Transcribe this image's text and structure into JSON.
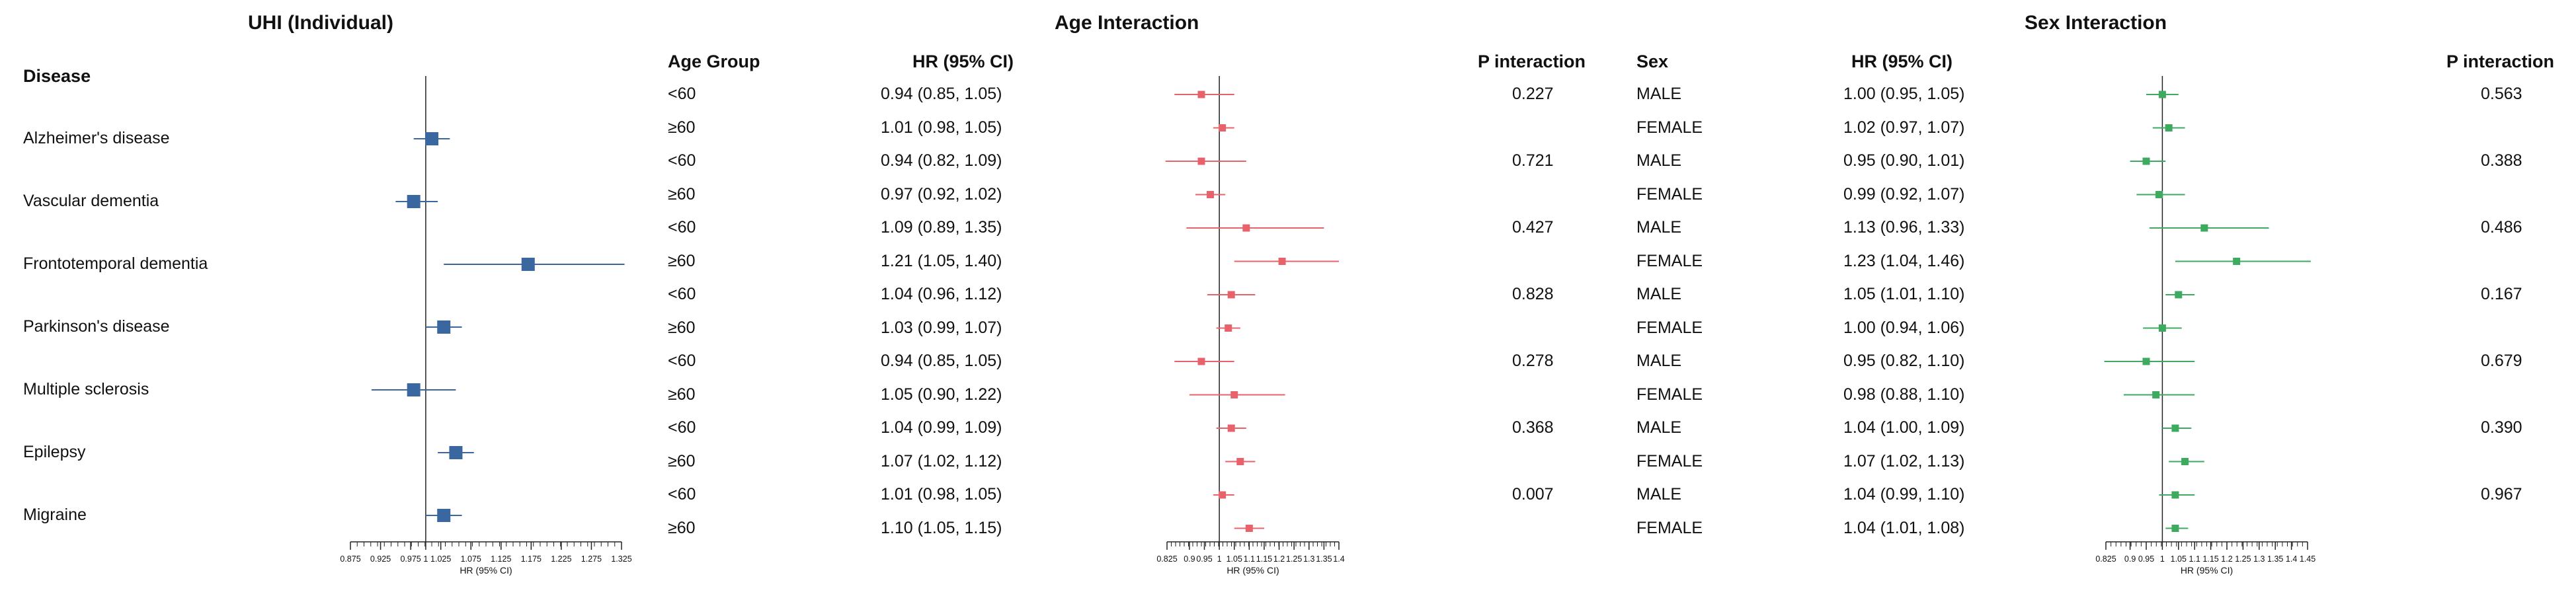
{
  "panels": {
    "uhi_title": "UHI (Individual)",
    "age_title": "Age Interaction",
    "sex_title": "Sex Interaction"
  },
  "headers": {
    "disease": "Disease",
    "age_group": "Age Group",
    "hr_ci": "HR (95% CI)",
    "p_interaction": "P interaction",
    "sex": "Sex"
  },
  "colors": {
    "uhi": "#3a67a0",
    "age": "#e8626b",
    "sex": "#3daa60",
    "axis": "#222222"
  },
  "chart_data": [
    {
      "type": "forest",
      "title": "UHI (Individual)",
      "xlabel": "HR (95% CI)",
      "xlim": [
        0.875,
        1.325
      ],
      "ticks": [
        "0.875",
        "0.925",
        "0.975",
        "1",
        "1.025",
        "1.075",
        "1.125",
        "1.175",
        "1.225",
        "1.275",
        "1.325"
      ],
      "reference": 1,
      "rows": [
        {
          "label": "Alzheimer's disease",
          "hr": 1.01,
          "lo": 0.98,
          "hi": 1.04
        },
        {
          "label": "Vascular dementia",
          "hr": 0.98,
          "lo": 0.95,
          "hi": 1.02
        },
        {
          "label": "Frontotemporal dementia",
          "hr": 1.17,
          "lo": 1.03,
          "hi": 1.33
        },
        {
          "label": "Parkinson's disease",
          "hr": 1.03,
          "lo": 1.0,
          "hi": 1.06
        },
        {
          "label": "Multiple sclerosis",
          "hr": 0.98,
          "lo": 0.91,
          "hi": 1.05
        },
        {
          "label": "Epilepsy",
          "hr": 1.05,
          "lo": 1.02,
          "hi": 1.08
        },
        {
          "label": "Migraine",
          "hr": 1.03,
          "lo": 1.0,
          "hi": 1.06
        }
      ]
    },
    {
      "type": "forest",
      "title": "Age Interaction",
      "xlabel": "HR (95% CI)",
      "xlim": [
        0.825,
        1.4
      ],
      "ticks": [
        "0.825",
        "0.9",
        "0.95",
        "1",
        "1.05",
        "1.1",
        "1.15",
        "1.2",
        "1.25",
        "1.3",
        "1.35",
        "1.4"
      ],
      "reference": 1,
      "rows": [
        {
          "group": "<60",
          "hr": 0.94,
          "lo": 0.85,
          "hi": 1.05,
          "text": "0.94 (0.85, 1.05)",
          "p": "0.227"
        },
        {
          "group": "≥60",
          "hr": 1.01,
          "lo": 0.98,
          "hi": 1.05,
          "text": "1.01 (0.98, 1.05)",
          "p": ""
        },
        {
          "group": "<60",
          "hr": 0.94,
          "lo": 0.82,
          "hi": 1.09,
          "text": "0.94 (0.82, 1.09)",
          "p": "0.721"
        },
        {
          "group": "≥60",
          "hr": 0.97,
          "lo": 0.92,
          "hi": 1.02,
          "text": "0.97 (0.92, 1.02)",
          "p": ""
        },
        {
          "group": "<60",
          "hr": 1.09,
          "lo": 0.89,
          "hi": 1.35,
          "text": "1.09 (0.89, 1.35)",
          "p": "0.427"
        },
        {
          "group": "≥60",
          "hr": 1.21,
          "lo": 1.05,
          "hi": 1.4,
          "text": "1.21 (1.05, 1.40)",
          "p": ""
        },
        {
          "group": "<60",
          "hr": 1.04,
          "lo": 0.96,
          "hi": 1.12,
          "text": "1.04 (0.96, 1.12)",
          "p": "0.828"
        },
        {
          "group": "≥60",
          "hr": 1.03,
          "lo": 0.99,
          "hi": 1.07,
          "text": "1.03 (0.99, 1.07)",
          "p": ""
        },
        {
          "group": "<60",
          "hr": 0.94,
          "lo": 0.85,
          "hi": 1.05,
          "text": "0.94 (0.85, 1.05)",
          "p": "0.278"
        },
        {
          "group": "≥60",
          "hr": 1.05,
          "lo": 0.9,
          "hi": 1.22,
          "text": "1.05 (0.90, 1.22)",
          "p": ""
        },
        {
          "group": "<60",
          "hr": 1.04,
          "lo": 0.99,
          "hi": 1.09,
          "text": "1.04 (0.99, 1.09)",
          "p": "0.368"
        },
        {
          "group": "≥60",
          "hr": 1.07,
          "lo": 1.02,
          "hi": 1.12,
          "text": "1.07 (1.02, 1.12)",
          "p": ""
        },
        {
          "group": "<60",
          "hr": 1.01,
          "lo": 0.98,
          "hi": 1.05,
          "text": "1.01 (0.98, 1.05)",
          "p": "0.007"
        },
        {
          "group": "≥60",
          "hr": 1.1,
          "lo": 1.05,
          "hi": 1.15,
          "text": "1.10 (1.05, 1.15)",
          "p": ""
        }
      ]
    },
    {
      "type": "forest",
      "title": "Sex Interaction",
      "xlabel": "HR (95% CI)",
      "xlim": [
        0.825,
        1.45
      ],
      "ticks": [
        "0.825",
        "0.9",
        "0.95",
        "1",
        "1.05",
        "1.1",
        "1.15",
        "1.2",
        "1.25",
        "1.3",
        "1.35",
        "1.4",
        "1.45"
      ],
      "reference": 1,
      "rows": [
        {
          "group": "MALE",
          "hr": 1.0,
          "lo": 0.95,
          "hi": 1.05,
          "text": "1.00 (0.95, 1.05)",
          "p": "0.563"
        },
        {
          "group": "FEMALE",
          "hr": 1.02,
          "lo": 0.97,
          "hi": 1.07,
          "text": "1.02 (0.97, 1.07)",
          "p": ""
        },
        {
          "group": "MALE",
          "hr": 0.95,
          "lo": 0.9,
          "hi": 1.01,
          "text": "0.95 (0.90, 1.01)",
          "p": "0.388"
        },
        {
          "group": "FEMALE",
          "hr": 0.99,
          "lo": 0.92,
          "hi": 1.07,
          "text": "0.99 (0.92, 1.07)",
          "p": ""
        },
        {
          "group": "MALE",
          "hr": 1.13,
          "lo": 0.96,
          "hi": 1.33,
          "text": "1.13 (0.96, 1.33)",
          "p": "0.486"
        },
        {
          "group": "FEMALE",
          "hr": 1.23,
          "lo": 1.04,
          "hi": 1.46,
          "text": "1.23 (1.04, 1.46)",
          "p": ""
        },
        {
          "group": "MALE",
          "hr": 1.05,
          "lo": 1.01,
          "hi": 1.1,
          "text": "1.05 (1.01, 1.10)",
          "p": "0.167"
        },
        {
          "group": "FEMALE",
          "hr": 1.0,
          "lo": 0.94,
          "hi": 1.06,
          "text": "1.00 (0.94, 1.06)",
          "p": ""
        },
        {
          "group": "MALE",
          "hr": 0.95,
          "lo": 0.82,
          "hi": 1.1,
          "text": "0.95 (0.82, 1.10)",
          "p": "0.679"
        },
        {
          "group": "FEMALE",
          "hr": 0.98,
          "lo": 0.88,
          "hi": 1.1,
          "text": "0.98 (0.88, 1.10)",
          "p": ""
        },
        {
          "group": "MALE",
          "hr": 1.04,
          "lo": 1.0,
          "hi": 1.09,
          "text": "1.04 (1.00, 1.09)",
          "p": "0.390"
        },
        {
          "group": "FEMALE",
          "hr": 1.07,
          "lo": 1.02,
          "hi": 1.13,
          "text": "1.07 (1.02, 1.13)",
          "p": ""
        },
        {
          "group": "MALE",
          "hr": 1.04,
          "lo": 0.99,
          "hi": 1.1,
          "text": "1.04 (0.99, 1.10)",
          "p": "0.967"
        },
        {
          "group": "FEMALE",
          "hr": 1.04,
          "lo": 1.01,
          "hi": 1.08,
          "text": "1.04 (1.01, 1.08)",
          "p": ""
        }
      ]
    }
  ]
}
